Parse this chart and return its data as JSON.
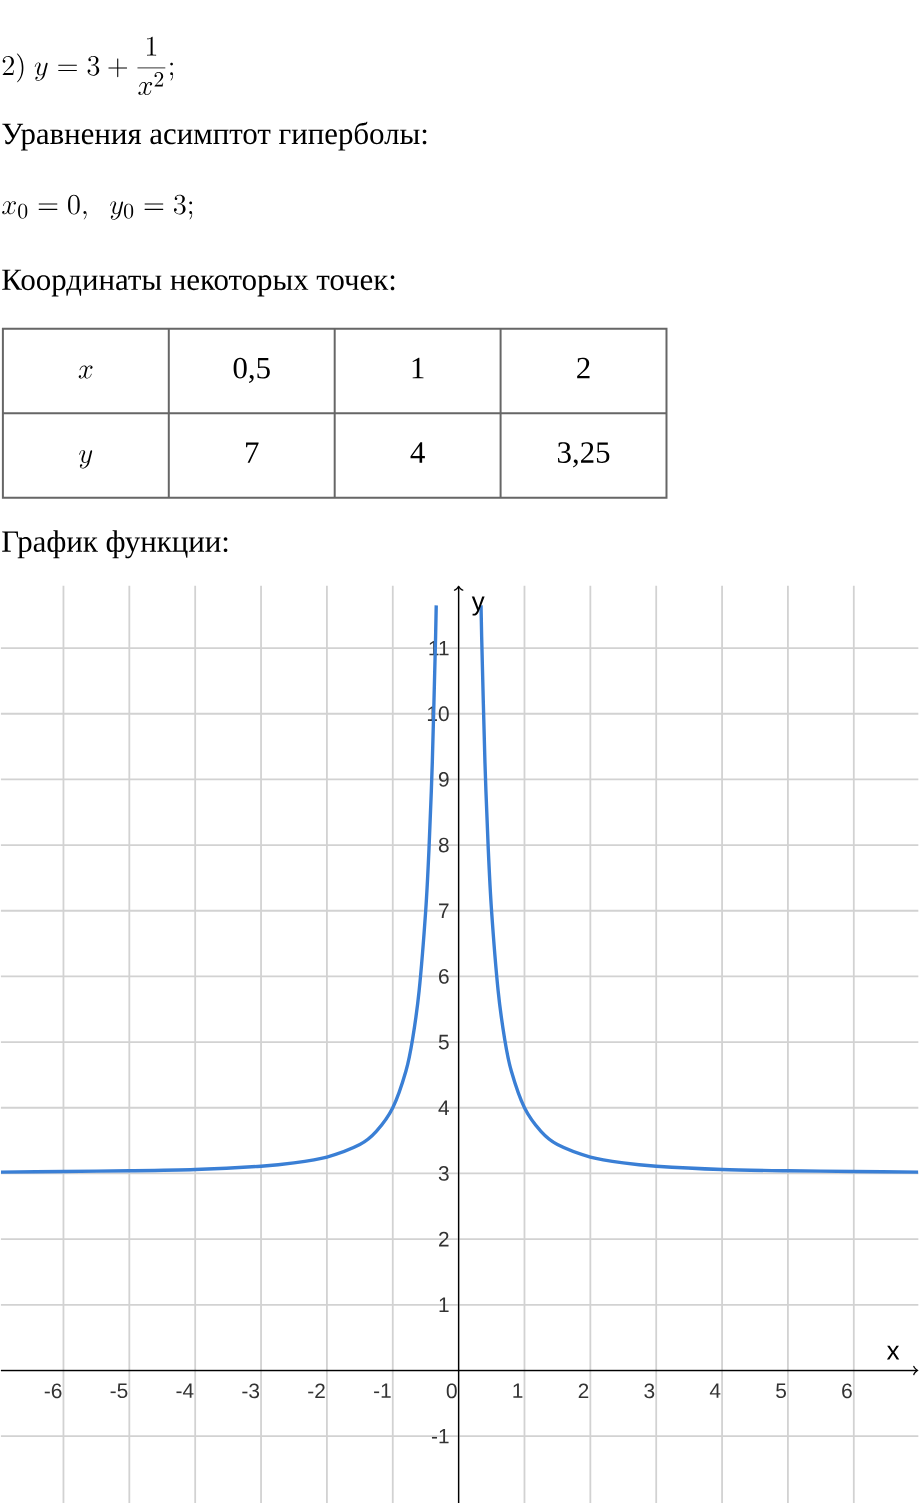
{
  "chart_data": {
    "type": "line",
    "title": "2)\\ y=3+\\frac{1}{x^{2}};",
    "subtitle": "Уравнения асимптот гиперболы:",
    "annotations": [
      "x_0=0,\\;\\; y_0=3;",
      "Координаты некоторых точек:",
      "x",
      "0,5",
      "1",
      "2",
      "y",
      "7",
      "4",
      "3,25",
      "График функции:"
    ],
    "xlabel": "x",
    "ylabel": "y",
    "x": [
      -6.95,
      -6,
      -5,
      -4,
      -3,
      -2.5,
      -2,
      -1.5,
      -1.25,
      -1,
      -0.8,
      -0.7,
      -0.6,
      -0.5,
      -0.45,
      -0.4,
      -0.35,
      -0.34,
      0,
      0.34,
      0.35,
      0.4,
      0.45,
      0.5,
      0.6,
      0.7,
      0.8,
      1,
      1.25,
      1.5,
      2,
      2.5,
      3,
      4,
      5,
      6,
      6.98
    ],
    "series": [
      {
        "color": "#3a7fd5",
        "values": [
          3.02,
          3.03,
          3.04,
          3.06,
          3.11,
          3.16,
          3.25,
          3.44,
          3.64,
          4,
          4.56,
          5.04,
          5.78,
          7,
          7.94,
          9.25,
          11.16,
          11.65,
          null,
          11.65,
          11.16,
          9.25,
          7.94,
          7,
          5.78,
          5.04,
          4.56,
          4,
          3.64,
          3.44,
          3.25,
          3.16,
          3.11,
          3.06,
          3.04,
          3.03,
          3.02
        ]
      }
    ],
    "xlim": [
      -6.95,
      6.98
    ],
    "ylim": [
      -2.02,
      11.95
    ],
    "xticks": [
      -6,
      -5,
      -4,
      -3,
      -2,
      -1,
      0,
      1,
      2,
      3,
      4,
      5,
      6
    ],
    "yticks": [
      -1,
      1,
      2,
      3,
      4,
      5,
      6,
      7,
      8,
      9,
      10,
      11
    ],
    "grid": true
  }
}
